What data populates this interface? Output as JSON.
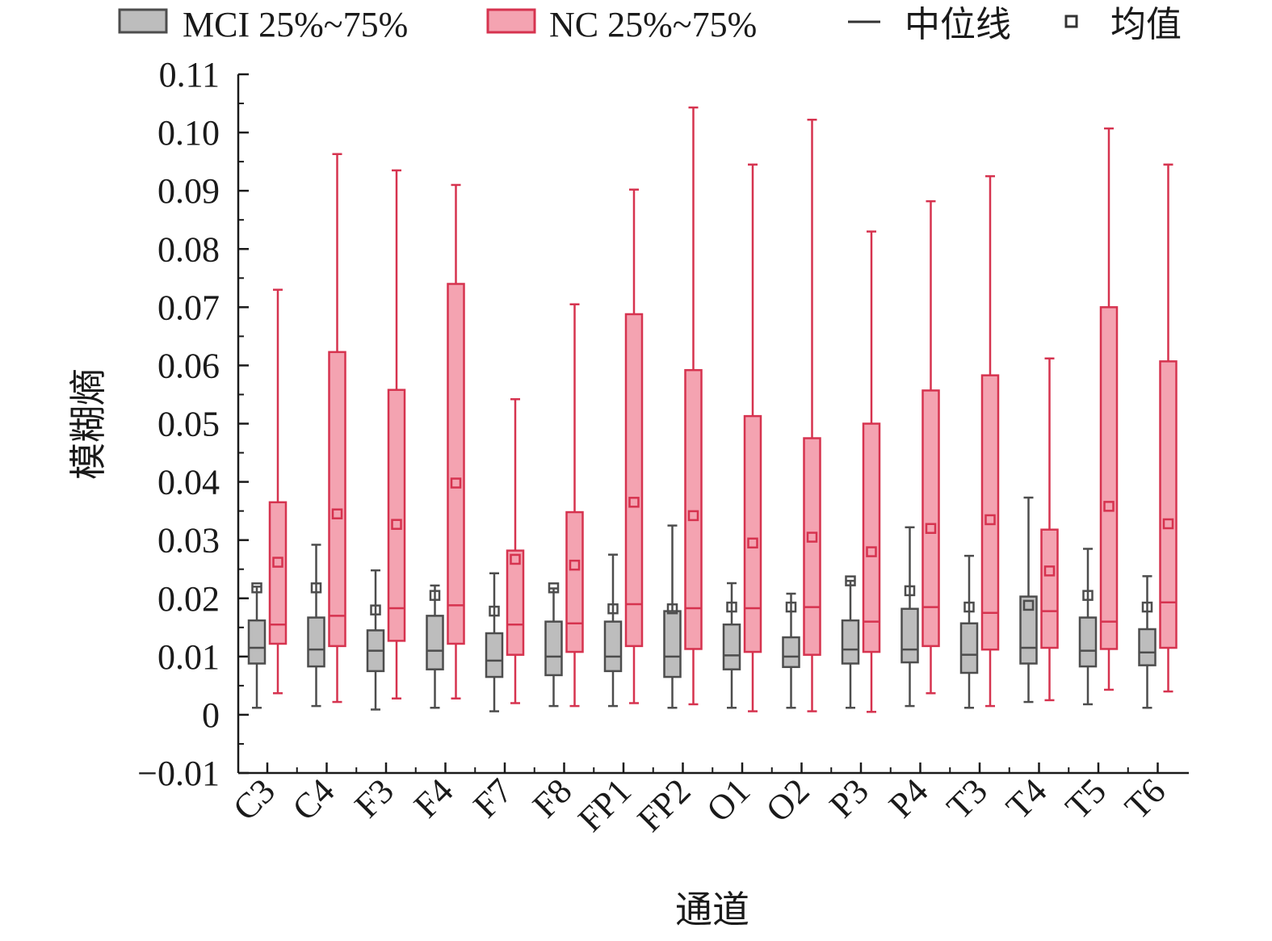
{
  "chart_data": {
    "type": "box",
    "xlabel": "通道",
    "ylabel": "模糊熵",
    "ylim": [
      -0.01,
      0.11
    ],
    "yticks": [
      -0.01,
      0,
      0.01,
      0.02,
      0.03,
      0.04,
      0.05,
      0.06,
      0.07,
      0.08,
      0.09,
      0.1,
      0.11
    ],
    "ytick_labels": [
      "−0.01",
      "0",
      "0.01",
      "0.02",
      "0.03",
      "0.04",
      "0.05",
      "0.06",
      "0.07",
      "0.08",
      "0.09",
      "0.10",
      "0.11"
    ],
    "categories": [
      "C3",
      "C4",
      "F3",
      "F4",
      "F7",
      "F8",
      "FP1",
      "FP2",
      "O1",
      "O2",
      "P3",
      "P4",
      "T3",
      "T4",
      "T5",
      "T6"
    ],
    "legend": {
      "placement": "top",
      "entries": [
        {
          "label": "MCI 25%~75%",
          "kind": "box",
          "series": "MCI"
        },
        {
          "label": "NC 25%~75%",
          "kind": "box",
          "series": "NC"
        },
        {
          "label": "中位线",
          "kind": "median"
        },
        {
          "label": "均值",
          "kind": "mean"
        }
      ]
    },
    "series": [
      {
        "name": "MCI",
        "fill": "#bdbdbd",
        "stroke": "#4d4d4d",
        "whisker_low": [
          0.0012,
          0.0015,
          0.0009,
          0.0012,
          0.0006,
          0.0015,
          0.0015,
          0.0012,
          0.0012,
          0.0012,
          0.0012,
          0.0015,
          0.0012,
          0.0022,
          0.0018,
          0.0012
        ],
        "q1": [
          0.0088,
          0.0083,
          0.0075,
          0.0078,
          0.0065,
          0.0068,
          0.0075,
          0.0065,
          0.0078,
          0.0082,
          0.0088,
          0.009,
          0.0072,
          0.0088,
          0.0083,
          0.0085
        ],
        "median": [
          0.0115,
          0.0112,
          0.011,
          0.011,
          0.0093,
          0.01,
          0.01,
          0.01,
          0.0102,
          0.01,
          0.0112,
          0.0112,
          0.0103,
          0.0115,
          0.011,
          0.0107
        ],
        "q3": [
          0.0162,
          0.0167,
          0.0145,
          0.017,
          0.014,
          0.016,
          0.016,
          0.0178,
          0.0155,
          0.0133,
          0.0162,
          0.0182,
          0.0157,
          0.0203,
          0.0167,
          0.0147
        ],
        "whisker_high": [
          0.022,
          0.0292,
          0.0248,
          0.0222,
          0.0243,
          0.0217,
          0.0275,
          0.0325,
          0.0226,
          0.0208,
          0.023,
          0.0322,
          0.0273,
          0.0373,
          0.0285,
          0.0238
        ],
        "mean": [
          0.0218,
          0.0218,
          0.018,
          0.0205,
          0.0178,
          0.0218,
          0.0182,
          0.0182,
          0.0185,
          0.0185,
          0.023,
          0.0213,
          0.0185,
          0.0188,
          0.0205,
          0.0185
        ]
      },
      {
        "name": "NC",
        "fill": "#f4a3b1",
        "stroke": "#d6334f",
        "whisker_low": [
          0.0037,
          0.0022,
          0.0028,
          0.0028,
          0.002,
          0.0015,
          0.002,
          0.0018,
          0.0006,
          0.0006,
          0.0005,
          0.0037,
          0.0015,
          0.0025,
          0.0043,
          0.004
        ],
        "q1": [
          0.0122,
          0.0118,
          0.0127,
          0.0122,
          0.0103,
          0.0108,
          0.0118,
          0.0113,
          0.0108,
          0.0103,
          0.0108,
          0.0118,
          0.0112,
          0.0115,
          0.0113,
          0.0115
        ],
        "median": [
          0.0155,
          0.017,
          0.0183,
          0.0188,
          0.0155,
          0.0157,
          0.019,
          0.0183,
          0.0183,
          0.0185,
          0.016,
          0.0185,
          0.0175,
          0.0178,
          0.016,
          0.0193
        ],
        "q3": [
          0.0365,
          0.0623,
          0.0558,
          0.074,
          0.0282,
          0.0348,
          0.0688,
          0.0592,
          0.0513,
          0.0475,
          0.05,
          0.0557,
          0.0583,
          0.0318,
          0.07,
          0.0607
        ],
        "whisker_high": [
          0.073,
          0.0963,
          0.0935,
          0.091,
          0.0542,
          0.0705,
          0.0902,
          0.1043,
          0.0945,
          0.1022,
          0.083,
          0.0882,
          0.0925,
          0.0612,
          0.1007,
          0.0945
        ],
        "mean": [
          0.0262,
          0.0345,
          0.0327,
          0.0398,
          0.0267,
          0.0257,
          0.0365,
          0.0342,
          0.0295,
          0.0305,
          0.028,
          0.032,
          0.0335,
          0.0247,
          0.0358,
          0.0328
        ]
      }
    ]
  }
}
